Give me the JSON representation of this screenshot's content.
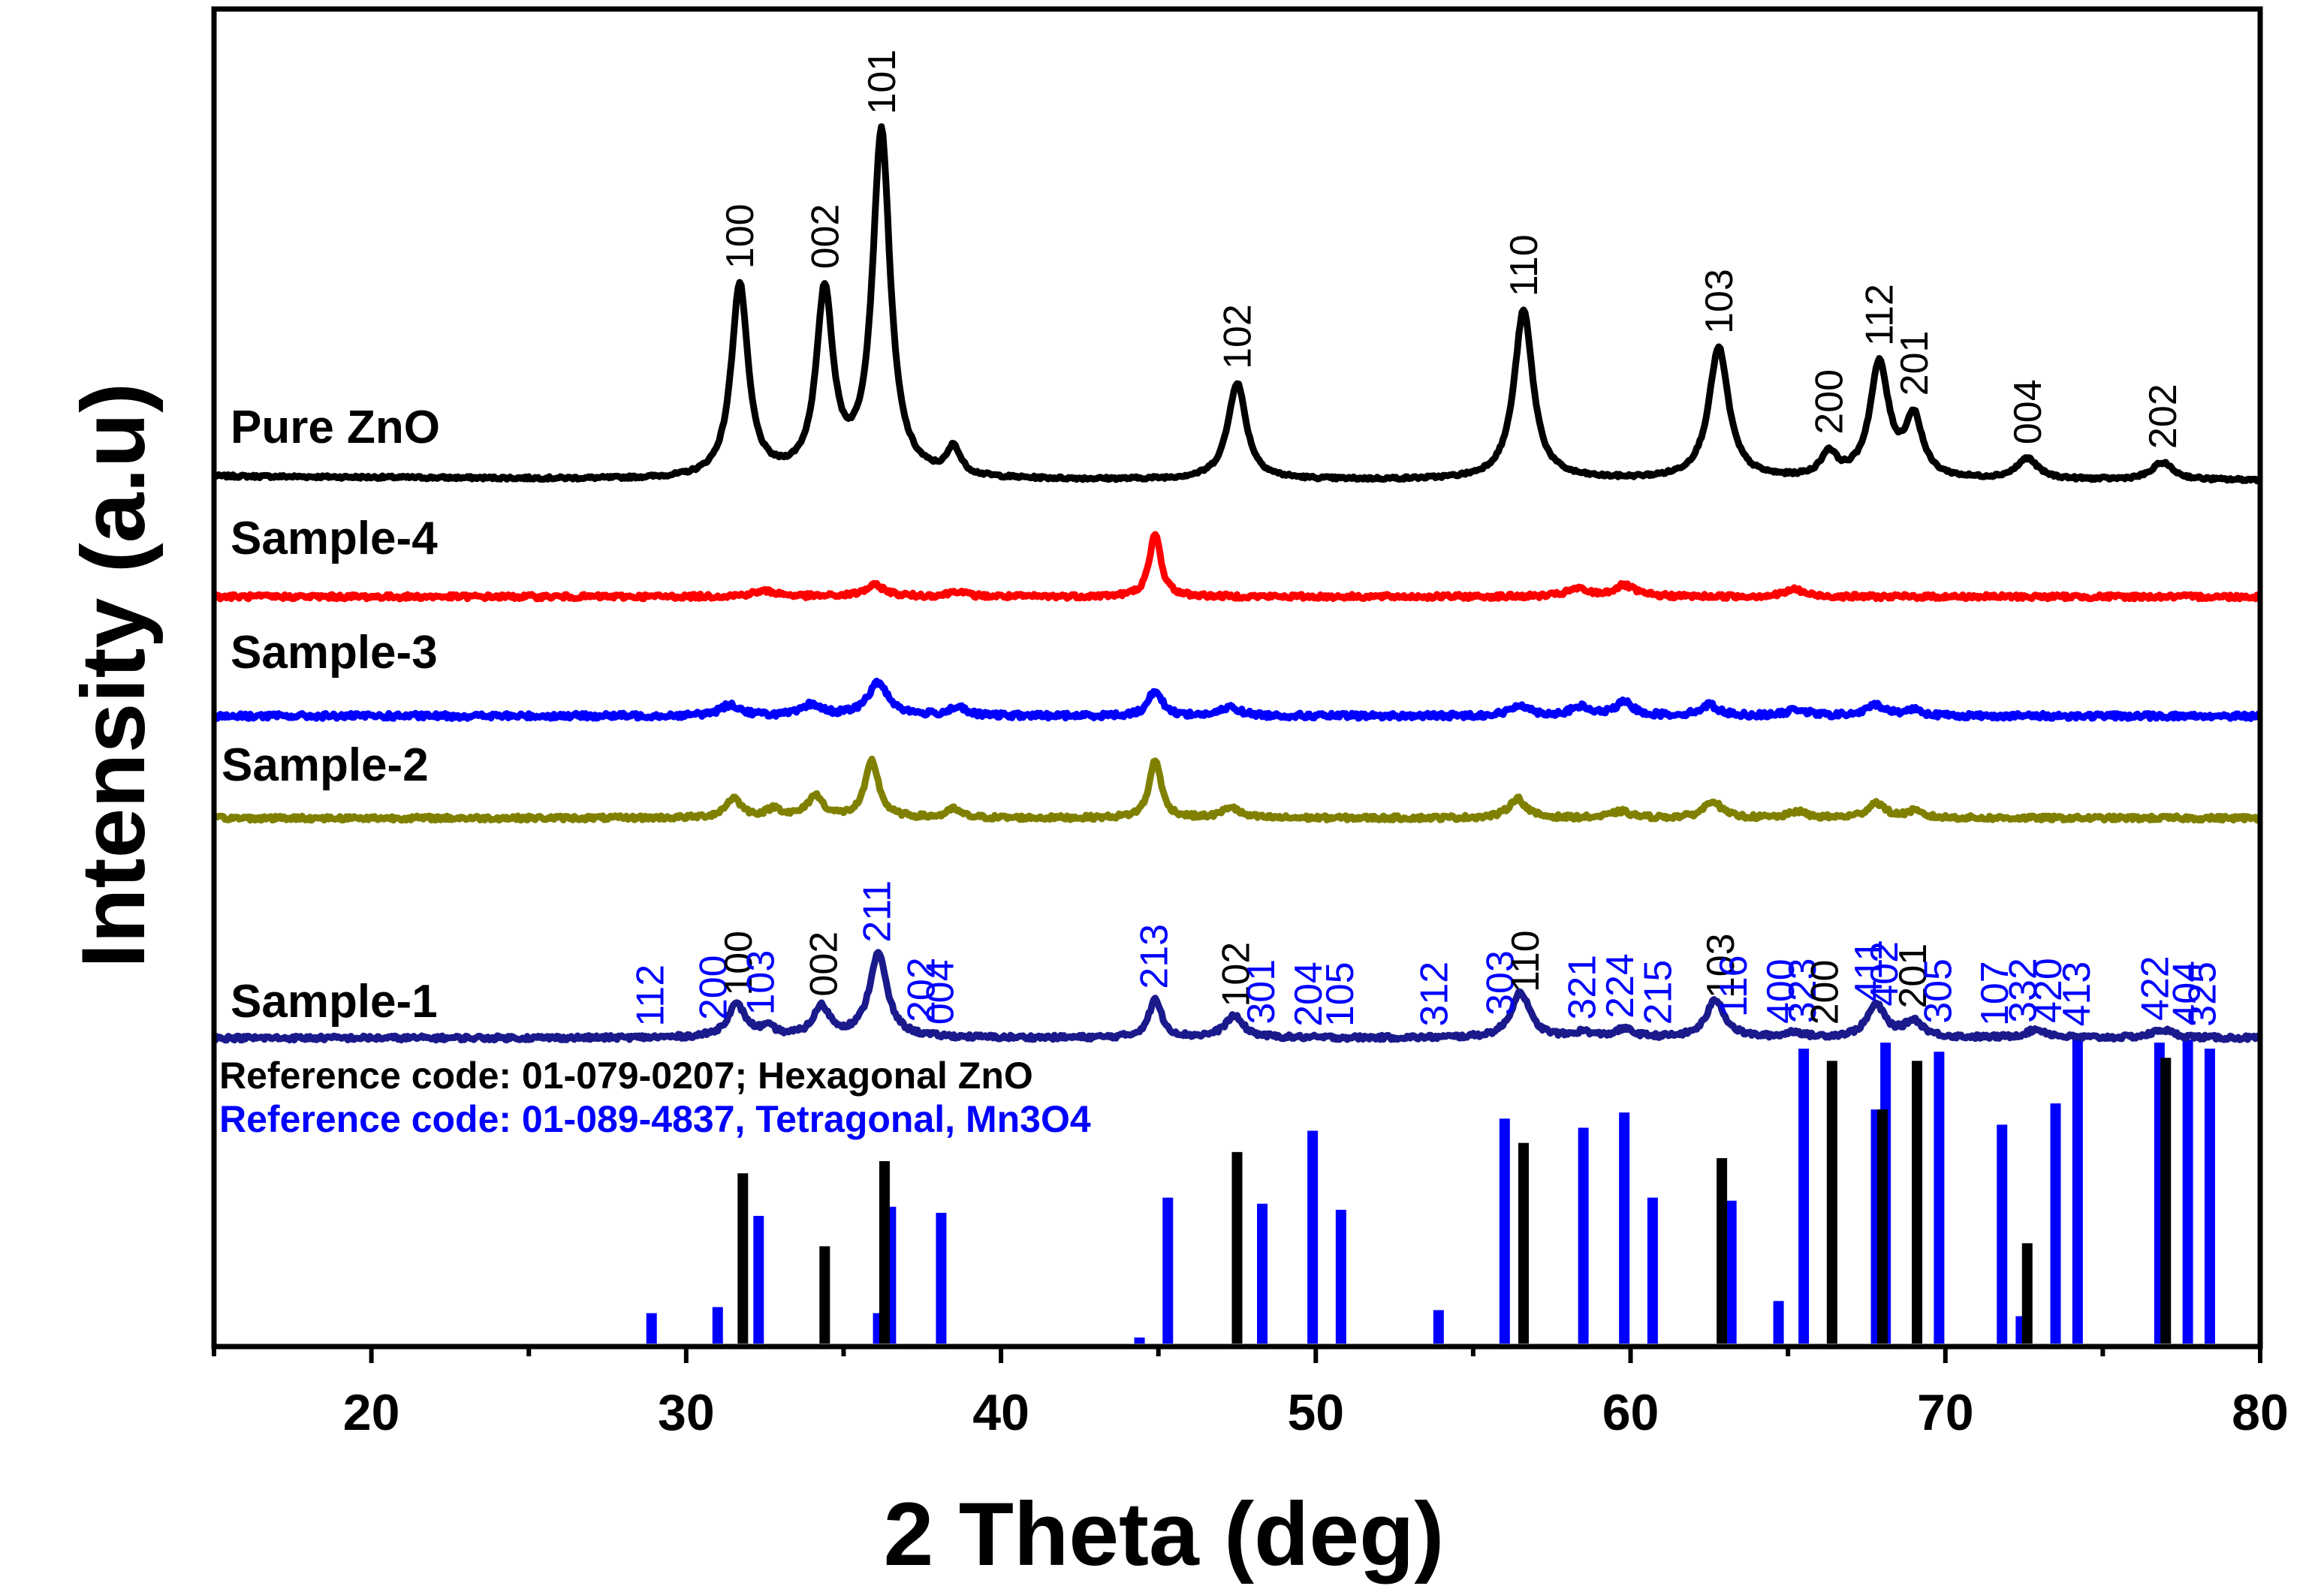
{
  "chart_data": {
    "type": "line",
    "title": "",
    "xlabel": "2 Theta (deg)",
    "ylabel": "Intensity (a.u)",
    "xlim": [
      15,
      80
    ],
    "xticks": [
      20,
      30,
      40,
      50,
      60,
      70,
      80
    ],
    "yticks": [],
    "grid": false,
    "colors": {
      "pure": "#000000",
      "sample4": "#ff0000",
      "sample3": "#0000ff",
      "sample2": "#808000",
      "sample1": "#1a1a8c",
      "ref_zno": "#000000",
      "ref_mn3o4": "#0000ff"
    },
    "series": [
      {
        "key": "pure",
        "name": "Pure ZnO",
        "color": "#000000",
        "baseline": 0.0,
        "noise": 0.004,
        "peaks": [
          {
            "x": 31.7,
            "h": 0.56,
            "w": 0.32
          },
          {
            "x": 34.4,
            "h": 0.53,
            "w": 0.32
          },
          {
            "x": 36.2,
            "h": 1.0,
            "w": 0.34
          },
          {
            "x": 38.5,
            "h": 0.08,
            "w": 0.25
          },
          {
            "x": 47.5,
            "h": 0.28,
            "w": 0.35
          },
          {
            "x": 56.6,
            "h": 0.49,
            "w": 0.36
          },
          {
            "x": 62.8,
            "h": 0.38,
            "w": 0.38
          },
          {
            "x": 66.3,
            "h": 0.07,
            "w": 0.3
          },
          {
            "x": 67.9,
            "h": 0.33,
            "w": 0.36
          },
          {
            "x": 69.0,
            "h": 0.17,
            "w": 0.33
          },
          {
            "x": 72.6,
            "h": 0.06,
            "w": 0.4
          },
          {
            "x": 76.9,
            "h": 0.05,
            "w": 0.4
          }
        ]
      },
      {
        "key": "sample4",
        "name": "Sample-4",
        "color": "#ff0000",
        "baseline": 0.0,
        "noise": 0.012,
        "peaks": [
          {
            "x": 32.5,
            "h": 0.03,
            "w": 0.5
          },
          {
            "x": 36.0,
            "h": 0.06,
            "w": 0.4
          },
          {
            "x": 38.6,
            "h": 0.03,
            "w": 0.3
          },
          {
            "x": 44.9,
            "h": 0.34,
            "w": 0.22
          },
          {
            "x": 58.3,
            "h": 0.04,
            "w": 0.4
          },
          {
            "x": 59.8,
            "h": 0.06,
            "w": 0.4
          },
          {
            "x": 65.2,
            "h": 0.04,
            "w": 0.35
          }
        ]
      },
      {
        "key": "sample3",
        "name": "Sample-3",
        "color": "#0000ff",
        "baseline": 0.0,
        "noise": 0.012,
        "peaks": [
          {
            "x": 31.4,
            "h": 0.05,
            "w": 0.4
          },
          {
            "x": 34.0,
            "h": 0.05,
            "w": 0.35
          },
          {
            "x": 36.1,
            "h": 0.15,
            "w": 0.4
          },
          {
            "x": 38.6,
            "h": 0.04,
            "w": 0.3
          },
          {
            "x": 44.9,
            "h": 0.12,
            "w": 0.25
          },
          {
            "x": 47.3,
            "h": 0.04,
            "w": 0.35
          },
          {
            "x": 56.5,
            "h": 0.05,
            "w": 0.35
          },
          {
            "x": 58.4,
            "h": 0.04,
            "w": 0.35
          },
          {
            "x": 59.8,
            "h": 0.06,
            "w": 0.35
          },
          {
            "x": 62.5,
            "h": 0.05,
            "w": 0.35
          },
          {
            "x": 65.3,
            "h": 0.03,
            "w": 0.35
          },
          {
            "x": 67.8,
            "h": 0.05,
            "w": 0.35
          },
          {
            "x": 69.0,
            "h": 0.03,
            "w": 0.3
          }
        ]
      },
      {
        "key": "sample2",
        "name": "Sample-2",
        "color": "#808000",
        "baseline": 0.0,
        "noise": 0.01,
        "peaks": [
          {
            "x": 31.5,
            "h": 0.09,
            "w": 0.3
          },
          {
            "x": 32.8,
            "h": 0.04,
            "w": 0.3
          },
          {
            "x": 34.1,
            "h": 0.1,
            "w": 0.3
          },
          {
            "x": 35.9,
            "h": 0.26,
            "w": 0.26
          },
          {
            "x": 38.5,
            "h": 0.04,
            "w": 0.25
          },
          {
            "x": 44.9,
            "h": 0.27,
            "w": 0.22
          },
          {
            "x": 47.3,
            "h": 0.05,
            "w": 0.3
          },
          {
            "x": 56.4,
            "h": 0.09,
            "w": 0.32
          },
          {
            "x": 59.7,
            "h": 0.03,
            "w": 0.35
          },
          {
            "x": 62.6,
            "h": 0.08,
            "w": 0.32
          },
          {
            "x": 65.3,
            "h": 0.03,
            "w": 0.3
          },
          {
            "x": 67.8,
            "h": 0.07,
            "w": 0.32
          },
          {
            "x": 69.0,
            "h": 0.03,
            "w": 0.3
          }
        ]
      },
      {
        "key": "sample1",
        "name": "Sample-1",
        "color": "#1a1a8c",
        "baseline": 0.0,
        "noise": 0.008,
        "peaks": [
          {
            "x": 31.6,
            "h": 0.12,
            "w": 0.35
          },
          {
            "x": 32.6,
            "h": 0.03,
            "w": 0.3
          },
          {
            "x": 34.3,
            "h": 0.11,
            "w": 0.32
          },
          {
            "x": 36.1,
            "h": 0.31,
            "w": 0.34
          },
          {
            "x": 44.9,
            "h": 0.14,
            "w": 0.25
          },
          {
            "x": 47.4,
            "h": 0.08,
            "w": 0.35
          },
          {
            "x": 56.5,
            "h": 0.17,
            "w": 0.35
          },
          {
            "x": 58.5,
            "h": 0.02,
            "w": 0.3
          },
          {
            "x": 59.8,
            "h": 0.03,
            "w": 0.35
          },
          {
            "x": 62.7,
            "h": 0.14,
            "w": 0.35
          },
          {
            "x": 65.2,
            "h": 0.02,
            "w": 0.3
          },
          {
            "x": 67.8,
            "h": 0.12,
            "w": 0.35
          },
          {
            "x": 69.0,
            "h": 0.06,
            "w": 0.35
          },
          {
            "x": 72.9,
            "h": 0.03,
            "w": 0.4
          },
          {
            "x": 76.9,
            "h": 0.03,
            "w": 0.4
          }
        ]
      }
    ],
    "peak_labels_pure": [
      {
        "text": "100",
        "x": 31.7
      },
      {
        "text": "002",
        "x": 34.4
      },
      {
        "text": "101",
        "x": 36.2
      },
      {
        "text": "102",
        "x": 47.5
      },
      {
        "text": "110",
        "x": 56.6
      },
      {
        "text": "103",
        "x": 62.8
      },
      {
        "text": "200",
        "x": 66.3
      },
      {
        "text": "112",
        "x": 67.9
      },
      {
        "text": "201",
        "x": 69.0
      },
      {
        "text": "004",
        "x": 72.6
      },
      {
        "text": "202",
        "x": 76.9
      }
    ],
    "peak_labels_sample1": [
      {
        "text": "112",
        "x": 28.9,
        "color": "blue"
      },
      {
        "text": "200",
        "x": 30.9,
        "color": "blue"
      },
      {
        "text": "100",
        "x": 31.7,
        "color": "black"
      },
      {
        "text": "103",
        "x": 32.4,
        "color": "blue"
      },
      {
        "text": "002",
        "x": 34.4,
        "color": "black"
      },
      {
        "text": "211",
        "x": 36.1,
        "color": "blue"
      },
      {
        "text": "202",
        "x": 37.5,
        "color": "blue"
      },
      {
        "text": "004",
        "x": 38.1,
        "color": "blue"
      },
      {
        "text": "213",
        "x": 44.9,
        "color": "blue"
      },
      {
        "text": "102",
        "x": 47.5,
        "color": "black"
      },
      {
        "text": "301",
        "x": 48.3,
        "color": "blue"
      },
      {
        "text": "204",
        "x": 49.8,
        "color": "blue"
      },
      {
        "text": "105",
        "x": 50.8,
        "color": "blue"
      },
      {
        "text": "312",
        "x": 53.8,
        "color": "blue"
      },
      {
        "text": "303",
        "x": 55.9,
        "color": "blue"
      },
      {
        "text": "110",
        "x": 56.7,
        "color": "black"
      },
      {
        "text": "321",
        "x": 58.5,
        "color": "blue"
      },
      {
        "text": "224",
        "x": 59.7,
        "color": "blue"
      },
      {
        "text": "215",
        "x": 60.9,
        "color": "blue"
      },
      {
        "text": "103",
        "x": 62.9,
        "color": "black"
      },
      {
        "text": "116",
        "x": 63.3,
        "color": "blue"
      },
      {
        "text": "400",
        "x": 64.8,
        "color": "blue"
      },
      {
        "text": "323",
        "x": 65.5,
        "color": "blue"
      },
      {
        "text": "200",
        "x": 66.2,
        "color": "black"
      },
      {
        "text": "411",
        "x": 67.6,
        "color": "blue"
      },
      {
        "text": "402",
        "x": 68.1,
        "color": "blue"
      },
      {
        "text": "201",
        "x": 69.0,
        "color": "black"
      },
      {
        "text": "305",
        "x": 69.8,
        "color": "blue"
      },
      {
        "text": "107",
        "x": 71.6,
        "color": "blue"
      },
      {
        "text": "332",
        "x": 72.5,
        "color": "blue"
      },
      {
        "text": "420",
        "x": 73.3,
        "color": "blue"
      },
      {
        "text": "413",
        "x": 74.2,
        "color": "blue"
      },
      {
        "text": "422",
        "x": 76.7,
        "color": "blue"
      },
      {
        "text": "404",
        "x": 77.7,
        "color": "blue"
      },
      {
        "text": "325",
        "x": 78.2,
        "color": "blue"
      }
    ],
    "reference_legend": [
      {
        "text": "Reference code: 01-079-0207; Hexagonal ZnO",
        "color": "#000000"
      },
      {
        "text": "Reference code: 01-089-4837, Tetragonal, Mn3O4",
        "color": "#0000ff"
      }
    ],
    "reference_zno": [
      {
        "x": 31.8,
        "h": 0.56
      },
      {
        "x": 34.4,
        "h": 0.32
      },
      {
        "x": 36.3,
        "h": 0.6
      },
      {
        "x": 47.5,
        "h": 0.63
      },
      {
        "x": 56.6,
        "h": 0.66
      },
      {
        "x": 62.9,
        "h": 0.61
      },
      {
        "x": 66.4,
        "h": 0.93
      },
      {
        "x": 68.0,
        "h": 0.77
      },
      {
        "x": 69.1,
        "h": 0.93
      },
      {
        "x": 72.6,
        "h": 0.33
      },
      {
        "x": 77.0,
        "h": 0.94
      }
    ],
    "reference_mn3o4": [
      {
        "x": 28.9,
        "h": 0.1
      },
      {
        "x": 31.0,
        "h": 0.12
      },
      {
        "x": 32.3,
        "h": 0.42
      },
      {
        "x": 36.1,
        "h": 0.1
      },
      {
        "x": 36.5,
        "h": 0.45
      },
      {
        "x": 38.1,
        "h": 0.43
      },
      {
        "x": 44.4,
        "h": 0.02
      },
      {
        "x": 45.3,
        "h": 0.48
      },
      {
        "x": 48.3,
        "h": 0.46
      },
      {
        "x": 49.9,
        "h": 0.7
      },
      {
        "x": 50.8,
        "h": 0.44
      },
      {
        "x": 53.9,
        "h": 0.11
      },
      {
        "x": 56.0,
        "h": 0.74
      },
      {
        "x": 58.5,
        "h": 0.71
      },
      {
        "x": 59.8,
        "h": 0.76
      },
      {
        "x": 60.7,
        "h": 0.48
      },
      {
        "x": 63.2,
        "h": 0.47
      },
      {
        "x": 64.7,
        "h": 0.14
      },
      {
        "x": 65.5,
        "h": 0.97
      },
      {
        "x": 67.8,
        "h": 0.77
      },
      {
        "x": 68.1,
        "h": 0.99
      },
      {
        "x": 69.8,
        "h": 0.96
      },
      {
        "x": 71.8,
        "h": 0.72
      },
      {
        "x": 72.4,
        "h": 0.09
      },
      {
        "x": 73.5,
        "h": 0.79
      },
      {
        "x": 74.2,
        "h": 1.0
      },
      {
        "x": 76.8,
        "h": 0.99
      },
      {
        "x": 77.7,
        "h": 1.0
      },
      {
        "x": 78.4,
        "h": 0.97
      }
    ]
  }
}
